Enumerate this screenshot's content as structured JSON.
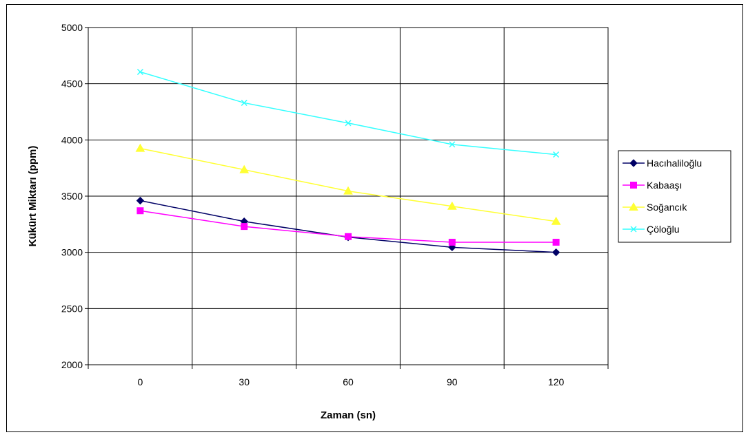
{
  "chart_data": {
    "type": "line",
    "title": "",
    "xlabel": "Zaman (sn)",
    "ylabel": "Kükürt Miktarı (ppm)",
    "x": [
      0,
      30,
      60,
      90,
      120
    ],
    "x_tick_labels": [
      "0",
      "30",
      "60",
      "90",
      "120"
    ],
    "ylim": [
      2000,
      5000
    ],
    "y_ticks": [
      2000,
      2500,
      3000,
      3500,
      4000,
      4500,
      5000
    ],
    "y_tick_labels": [
      "2000",
      "2500",
      "3000",
      "3500",
      "4000",
      "4500",
      "5000"
    ],
    "grid": true,
    "legend_position": "right",
    "series": [
      {
        "name": "Hacıhaliloğlu",
        "values": [
          3460,
          3275,
          3135,
          3045,
          3000
        ],
        "color": "#000066",
        "marker": "diamond"
      },
      {
        "name": "Kabaaşı",
        "values": [
          3370,
          3230,
          3140,
          3090,
          3090
        ],
        "color": "#ff00ff",
        "marker": "square"
      },
      {
        "name": "Soğancık",
        "values": [
          3925,
          3735,
          3545,
          3410,
          3275
        ],
        "color": "#ffff33",
        "marker": "triangle"
      },
      {
        "name": "Çöloğlu",
        "values": [
          4605,
          4330,
          4150,
          3960,
          3870
        ],
        "color": "#33ffff",
        "marker": "x"
      }
    ]
  }
}
